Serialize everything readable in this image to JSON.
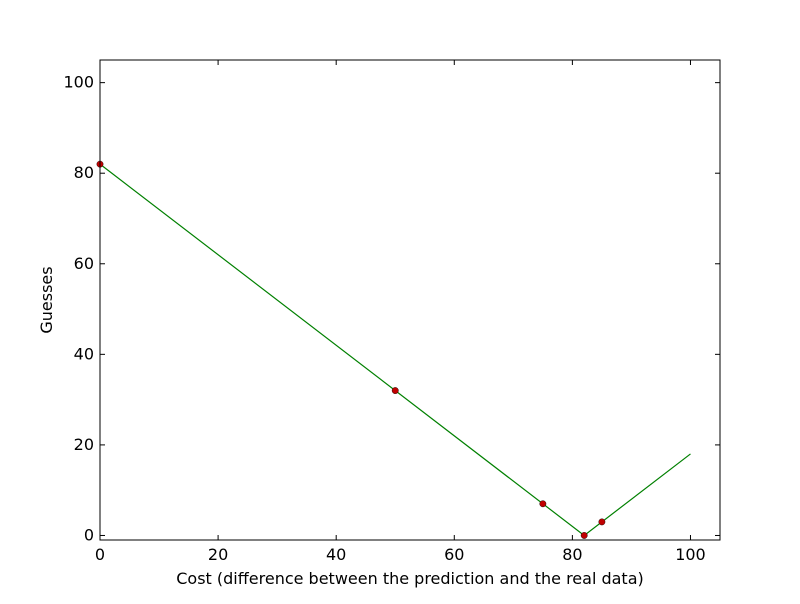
{
  "chart_data": {
    "type": "line",
    "xlabel": "Cost (difference between the prediction and the real data)",
    "ylabel": "Guesses",
    "xlim": [
      0,
      105
    ],
    "ylim": [
      -1,
      105
    ],
    "x_ticks": [
      0,
      20,
      40,
      60,
      80,
      100
    ],
    "y_ticks": [
      0,
      20,
      40,
      60,
      80,
      100
    ],
    "grid": false,
    "series": [
      {
        "type": "line",
        "color": "#008000",
        "x": [
          0,
          82,
          100
        ],
        "y": [
          82,
          0,
          18
        ]
      },
      {
        "type": "scatter",
        "color": "#c00000",
        "x": [
          0,
          50,
          75,
          82,
          85
        ],
        "y": [
          82,
          32,
          7,
          0,
          3
        ]
      }
    ]
  }
}
